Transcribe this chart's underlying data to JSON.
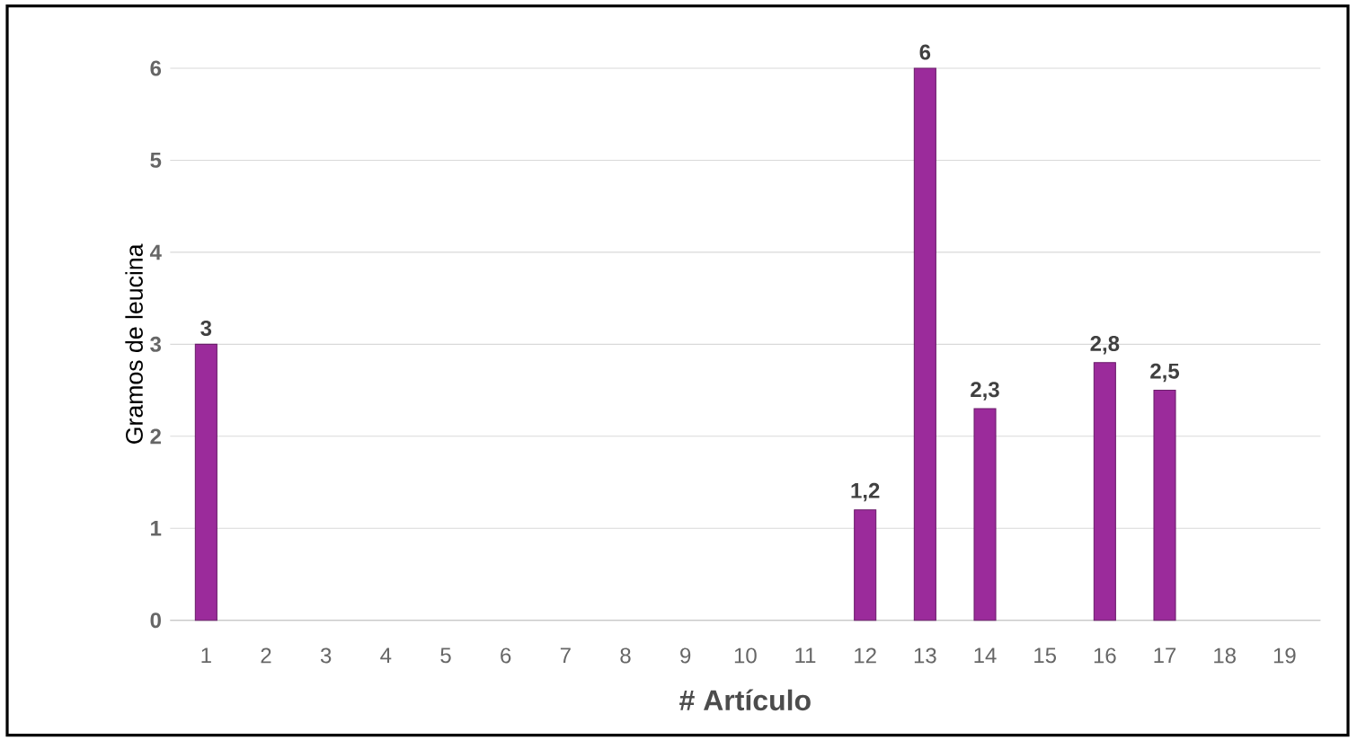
{
  "chart_data": {
    "type": "bar",
    "xlabel": "# Artículo",
    "ylabel": "Gramos de leucina",
    "categories": [
      "1",
      "2",
      "3",
      "4",
      "5",
      "6",
      "7",
      "8",
      "9",
      "10",
      "11",
      "12",
      "13",
      "14",
      "15",
      "16",
      "17",
      "18",
      "19"
    ],
    "values": [
      3,
      null,
      null,
      null,
      null,
      null,
      null,
      null,
      null,
      null,
      null,
      1.2,
      6,
      2.3,
      null,
      2.8,
      2.5,
      null,
      null
    ],
    "value_labels": [
      "3",
      null,
      null,
      null,
      null,
      null,
      null,
      null,
      null,
      null,
      null,
      "1,2",
      "6",
      "2,3",
      null,
      "2,8",
      "2,5",
      null,
      null
    ],
    "color": "#9b2b9b",
    "ylim": [
      0,
      6
    ],
    "yticks": [
      0,
      1,
      2,
      3,
      4,
      5,
      6
    ],
    "grid": "y"
  }
}
